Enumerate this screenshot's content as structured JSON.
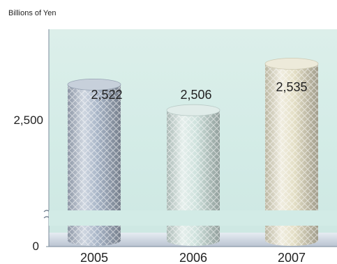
{
  "chart_data": {
    "type": "bar",
    "style": "cylinder",
    "unit_label": "Billions of Yen",
    "categories": [
      "2005",
      "2006",
      "2007"
    ],
    "values": [
      2522,
      2506,
      2535
    ],
    "data_labels": [
      "2,522",
      "2,506",
      "2,535"
    ],
    "y_ticks": [
      {
        "value": 0,
        "label": "0"
      },
      {
        "value": 2500,
        "label": "2,500"
      }
    ],
    "axis_break": true,
    "ylim": [
      0,
      2600
    ],
    "grid": false,
    "legend": "none",
    "colors": {
      "plot_background": "#d2ebe6",
      "floor": "#c4ccd8",
      "bar_2005": "#a9b6c8",
      "bar_2006": "#cfe2dd",
      "bar_2007": "#e4dfc6",
      "axis": "#7a8a9a"
    }
  }
}
